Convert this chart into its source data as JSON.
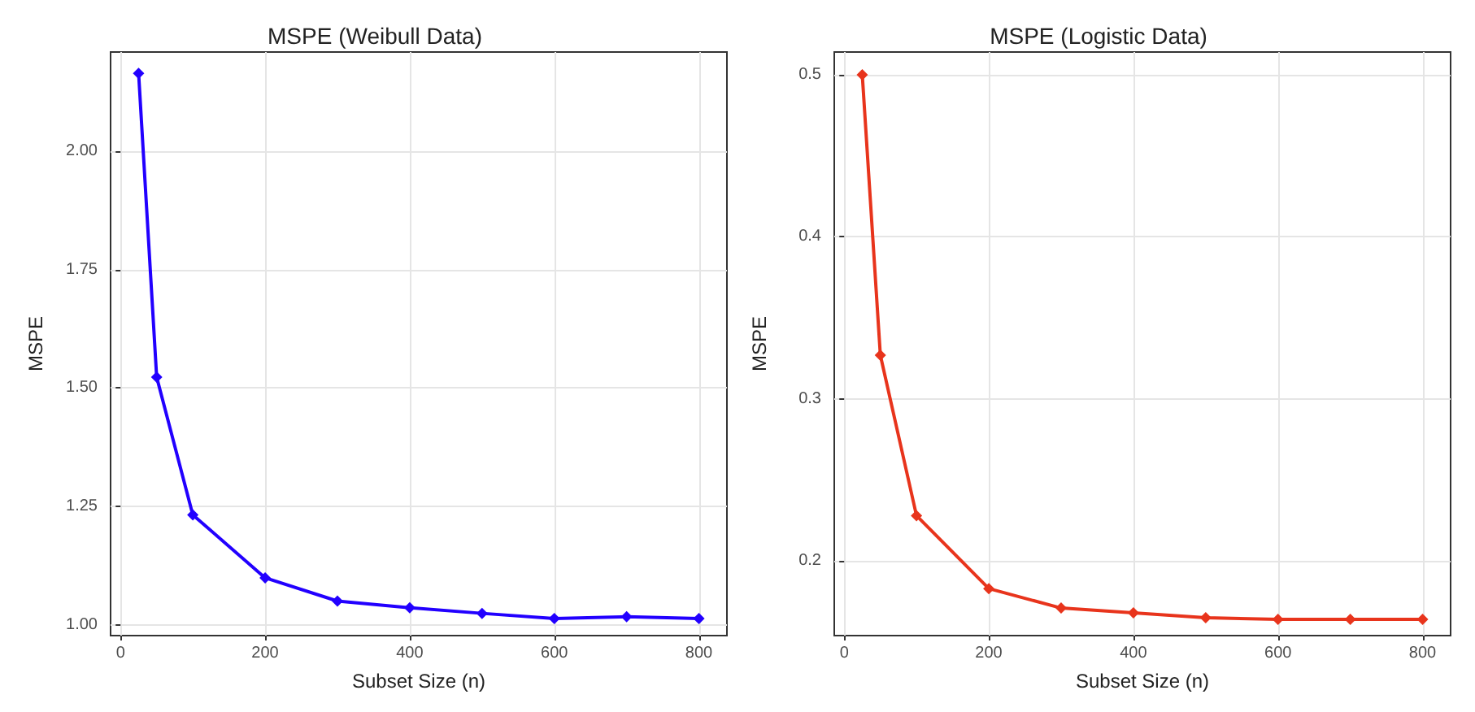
{
  "chart_data": [
    {
      "type": "line",
      "title": "MSPE (Weibull Data)",
      "xlabel": "Subset Size (n)",
      "ylabel": "MSPE",
      "x": [
        25,
        50,
        100,
        200,
        300,
        400,
        500,
        600,
        700,
        800
      ],
      "series": [
        {
          "color": "#2200ff",
          "values": [
            2.165,
            1.523,
            1.232,
            1.099,
            1.05,
            1.036,
            1.024,
            1.013,
            1.017,
            1.013
          ]
        }
      ],
      "xlim": [
        -13.75,
        838.75
      ],
      "xticks": [
        0,
        200,
        400,
        600,
        800
      ],
      "ylim": [
        0.977,
        2.21
      ],
      "yticks": [
        {
          "value": 1,
          "label": "1.00"
        },
        1.25,
        {
          "value": 1.5,
          "label": "1.50"
        },
        1.75,
        {
          "value": 2,
          "label": "2.00"
        }
      ],
      "grid": true,
      "marker": "diamond",
      "line_style": "solid"
    },
    {
      "type": "line",
      "title": "MSPE (Logistic Data)",
      "xlabel": "Subset Size (n)",
      "ylabel": "MSPE",
      "x": [
        25,
        50,
        100,
        200,
        300,
        400,
        500,
        600,
        700,
        800
      ],
      "series": [
        {
          "color": "#e8341c",
          "values": [
            0.5,
            0.327,
            0.228,
            0.183,
            0.171,
            0.168,
            0.165,
            0.164,
            0.164,
            0.164
          ]
        }
      ],
      "xlim": [
        -13.75,
        838.75
      ],
      "xticks": [
        0,
        200,
        400,
        600,
        800
      ],
      "ylim": [
        0.154,
        0.514
      ],
      "yticks": [
        0.2,
        0.3,
        0.4,
        0.5
      ],
      "grid": true,
      "marker": "diamond",
      "line_style": "solid"
    }
  ]
}
